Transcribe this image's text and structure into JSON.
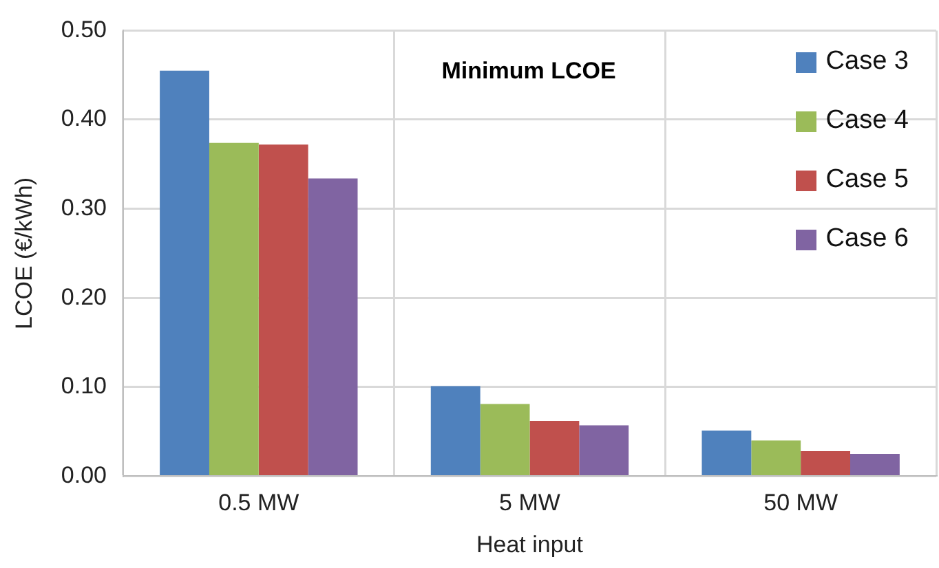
{
  "chart_data": {
    "type": "bar",
    "xlabel": "Heat input",
    "ylabel": "LCOE (€/kWh)",
    "annotations": [
      "Minimum LCOE"
    ],
    "categories": [
      "0.5 MW",
      "5 MW",
      "50 MW"
    ],
    "series": [
      {
        "name": "Case 3",
        "color": "#4f81bd",
        "values": [
          0.455,
          0.101,
          0.051
        ]
      },
      {
        "name": "Case 4",
        "color": "#9bbb59",
        "values": [
          0.374,
          0.081,
          0.04
        ]
      },
      {
        "name": "Case 5",
        "color": "#c0504d",
        "values": [
          0.372,
          0.062,
          0.028
        ]
      },
      {
        "name": "Case 6",
        "color": "#8064a2",
        "values": [
          0.334,
          0.057,
          0.025
        ]
      }
    ],
    "ylim": [
      0,
      0.5
    ],
    "yticks": [
      {
        "value": 0,
        "label": "0.00"
      },
      {
        "value": 0.1,
        "label": "0.10"
      },
      {
        "value": 0.2,
        "label": "0.20"
      },
      {
        "value": 0.3,
        "label": "0.30"
      },
      {
        "value": 0.4,
        "label": "0.40"
      },
      {
        "value": 0.5,
        "label": "0.50"
      }
    ],
    "grid": true,
    "legend": "top right"
  }
}
